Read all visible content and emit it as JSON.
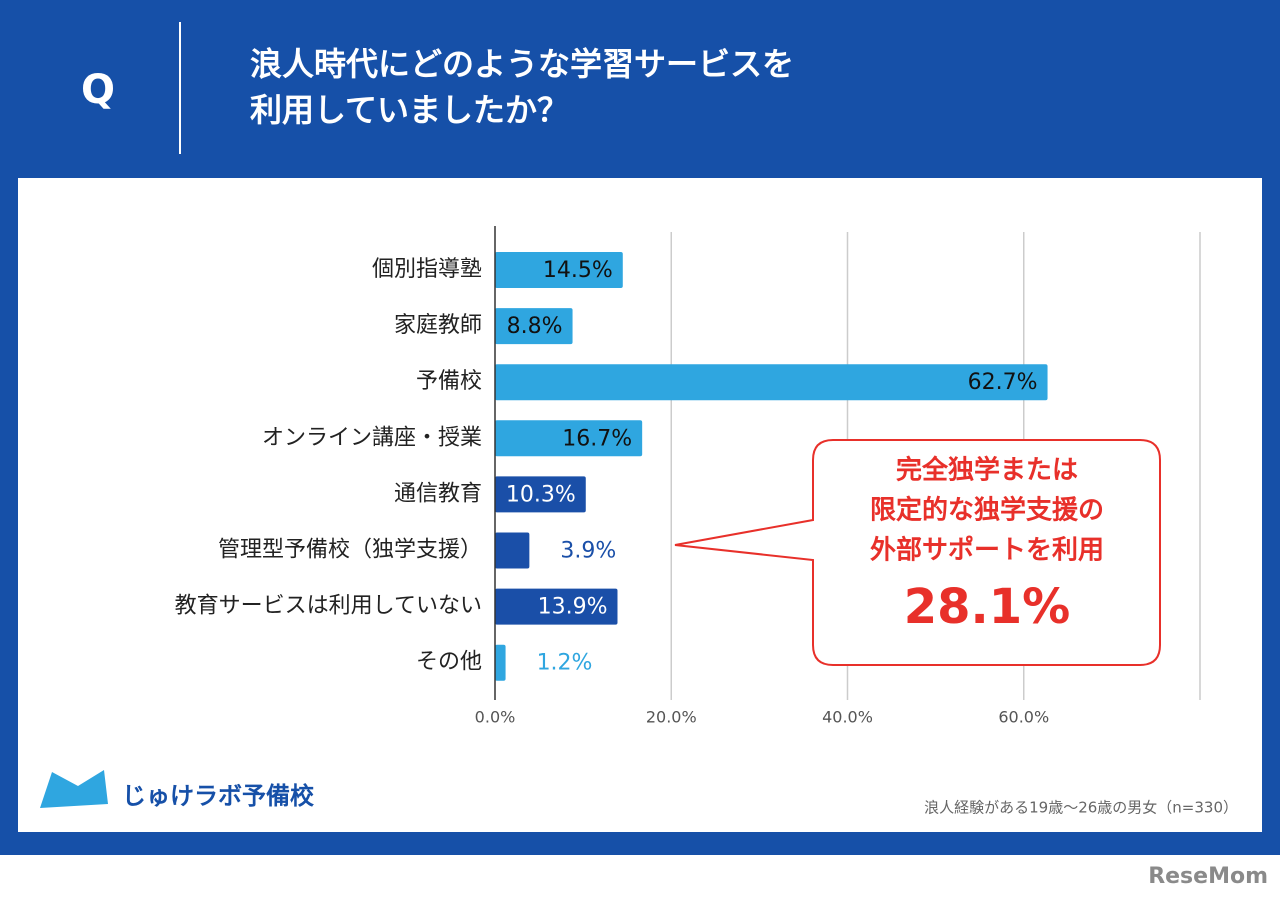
{
  "header": {
    "q": "Q",
    "title_lines": [
      "浪人時代にどのような学習サービスを",
      "利用していましたか？"
    ]
  },
  "chart_data": {
    "type": "bar",
    "orientation": "horizontal",
    "categories": [
      "個別指導塾",
      "家庭教師",
      "予備校",
      "オンライン講座・授業",
      "通信教育",
      "管理型予備校（独学支援）",
      "教育サービスは利用していない",
      "その他"
    ],
    "values": [
      14.5,
      8.8,
      62.7,
      16.7,
      10.3,
      3.9,
      13.9,
      1.2
    ],
    "value_labels": [
      "14.5%",
      "8.8%",
      "62.7%",
      "16.7%",
      "10.3%",
      "3.9%",
      "13.9%",
      "1.2%"
    ],
    "colors": [
      "#2fa6e0",
      "#2fa6e0",
      "#2fa6e0",
      "#2fa6e0",
      "#1a4fa8",
      "#1a4fa8",
      "#1a4fa8",
      "#2fa6e0"
    ],
    "xlim": [
      0,
      80
    ],
    "xticks": [
      {
        "value": 0,
        "label": "0.0%"
      },
      {
        "value": 20,
        "label": "20.0%"
      },
      {
        "value": 40,
        "label": "40.0%"
      },
      {
        "value": 60,
        "label": "60.0%"
      }
    ],
    "grid": true,
    "annotation": {
      "lines": [
        "完全独学または",
        "限定的な独学支援の",
        "外部サポートを利用"
      ],
      "value": 28.1,
      "value_label": "28.1%"
    }
  },
  "footer": {
    "logo": "じゅけラボ予備校",
    "note": "浪人経験がある19歳～26歳の男女（n=330）",
    "credit": "ReseMom"
  }
}
